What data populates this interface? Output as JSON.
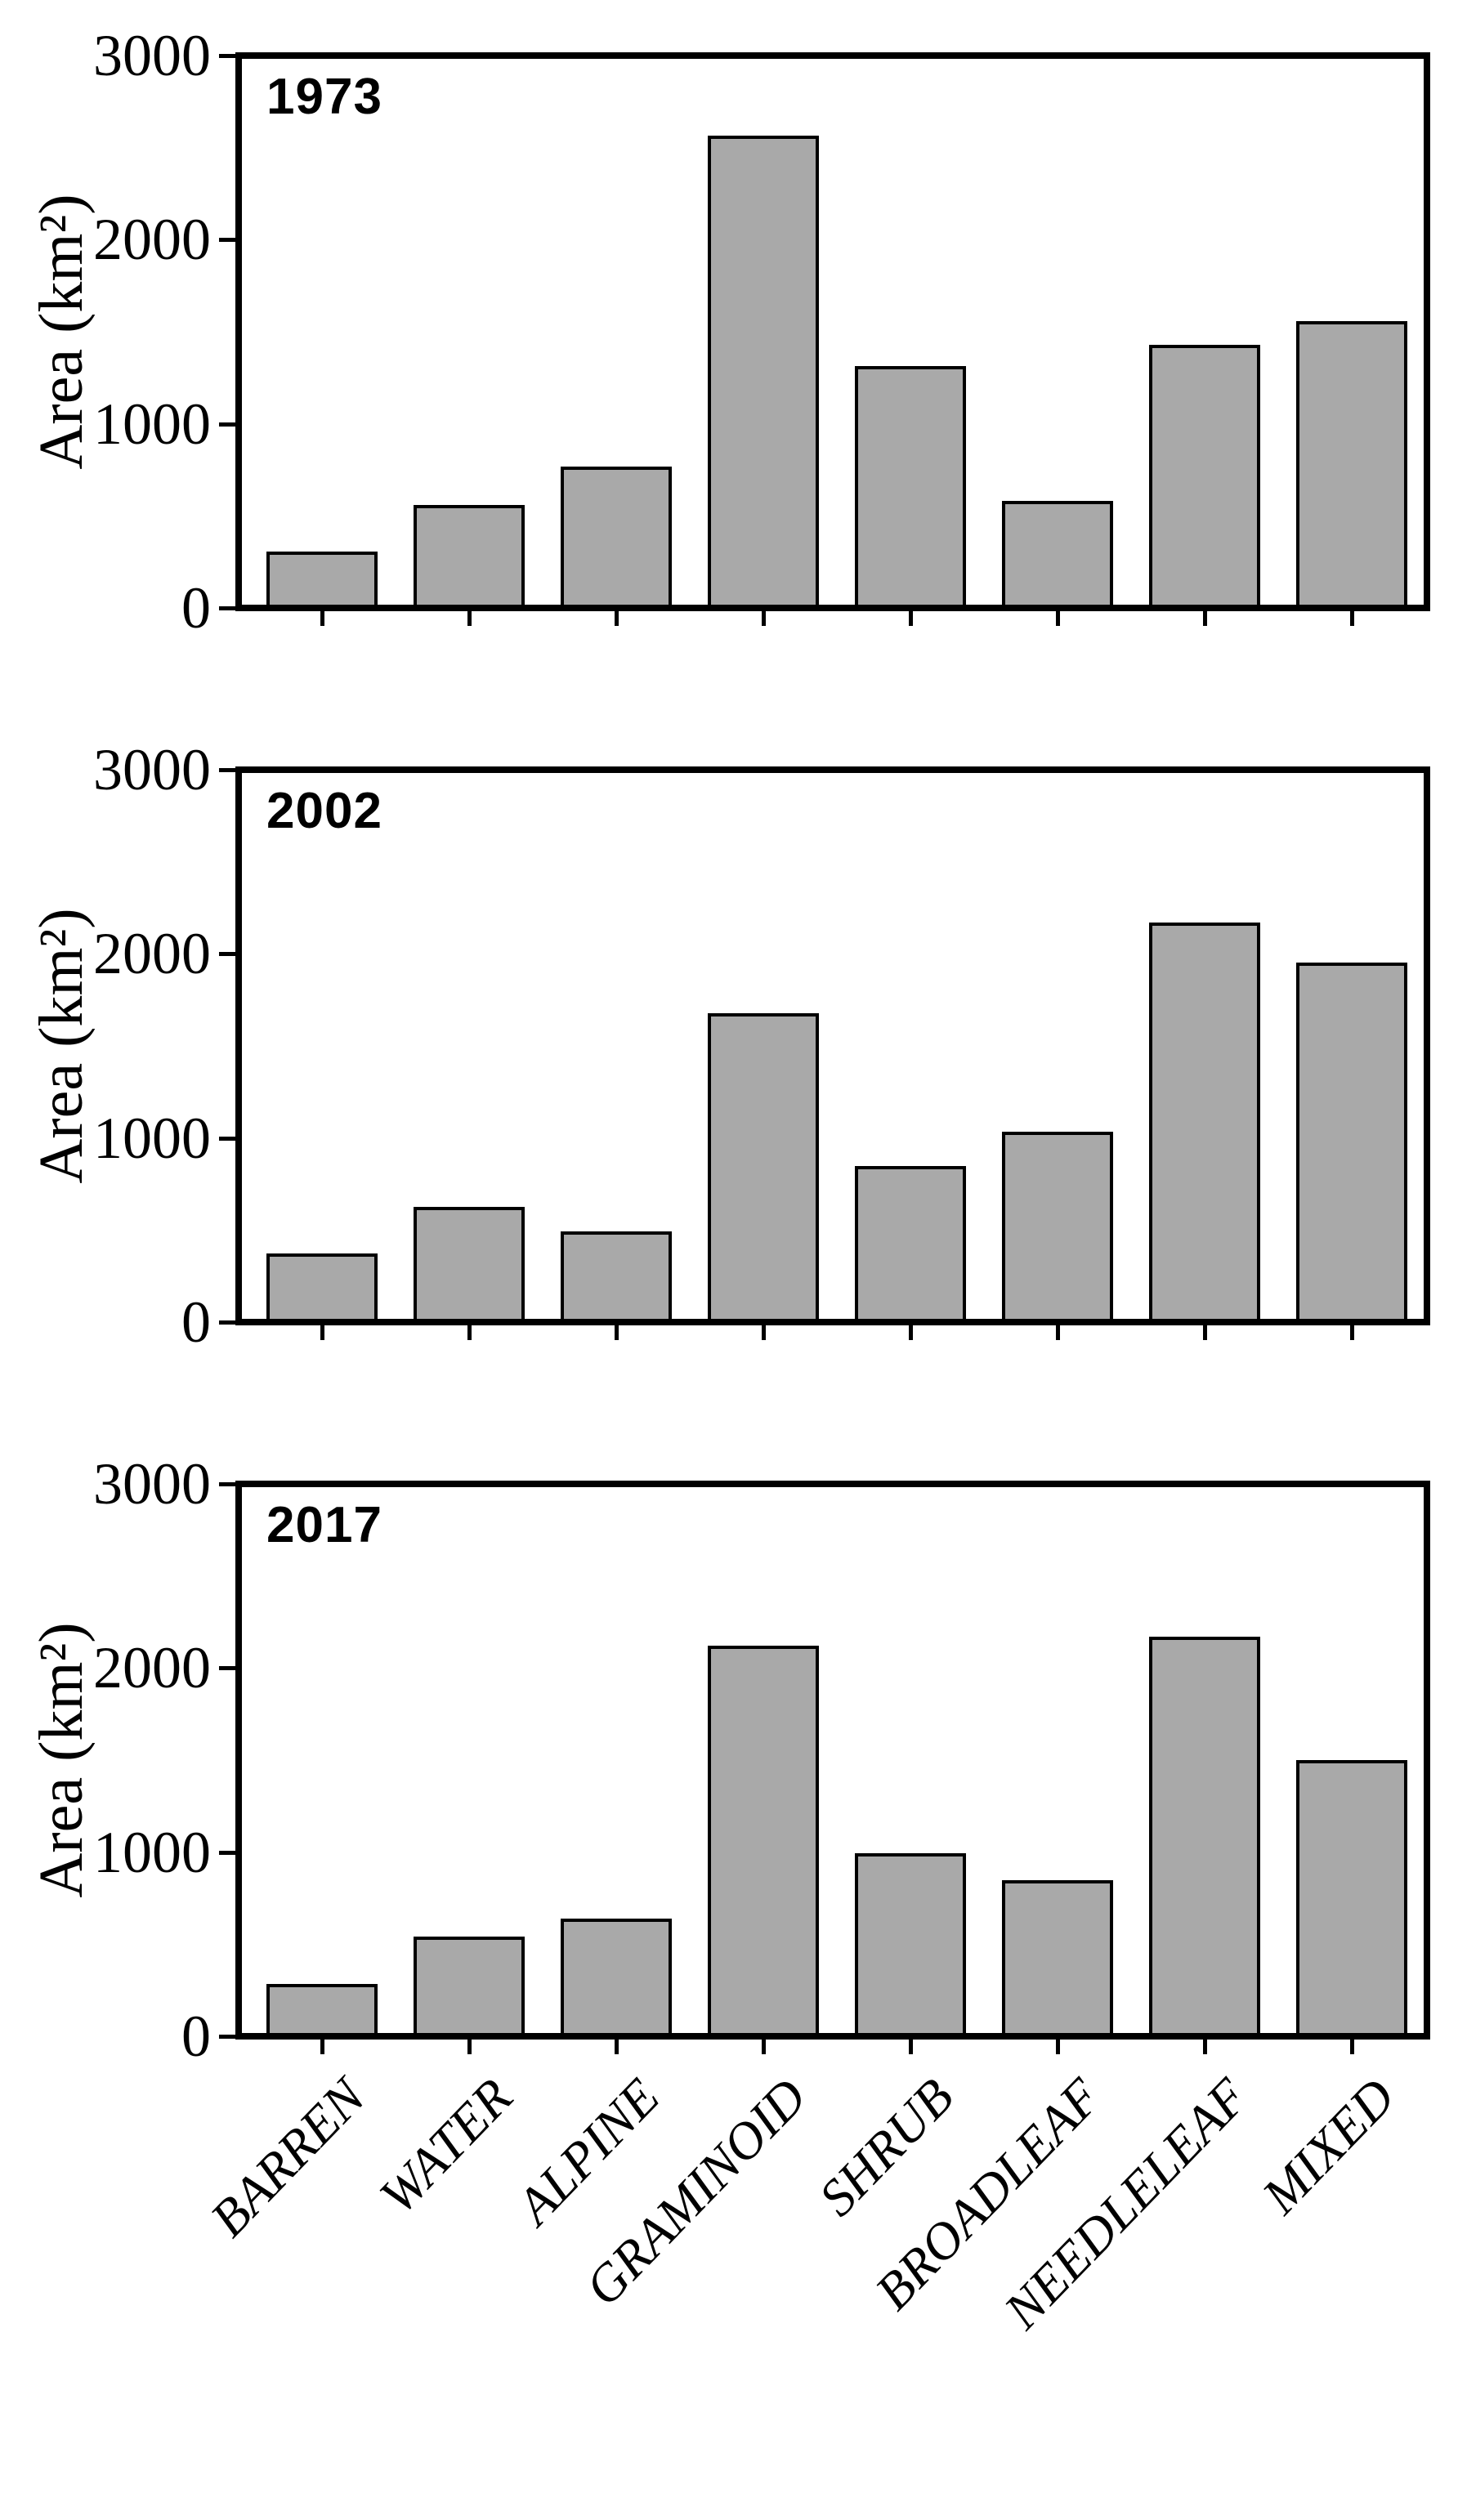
{
  "figure": {
    "colors": {
      "background": "#ffffff",
      "bar_fill": "#a9a9a9",
      "bar_border": "#000000",
      "axis": "#000000",
      "text": "#000000"
    },
    "y_axis_title": "Area (km²)",
    "panel_years": [
      "1973",
      "2002",
      "2017"
    ]
  },
  "chart_data": [
    {
      "type": "bar",
      "title": "1973",
      "categories": [
        "BARREN",
        "WATER",
        "ALPINE",
        "GRAMINOID",
        "SHRUB",
        "BROADLEAF",
        "NEEDLELEAF",
        "MIXED"
      ],
      "values": [
        290,
        550,
        760,
        2580,
        1310,
        570,
        1430,
        1560
      ],
      "xlabel": "",
      "ylabel": "Area (km²)",
      "ylim": [
        0,
        3000
      ],
      "yticks": [
        3000,
        2000,
        1000,
        0
      ],
      "grid": false,
      "legend": "none",
      "bar_color": "#a9a9a9"
    },
    {
      "type": "bar",
      "title": "2002",
      "categories": [
        "BARREN",
        "WATER",
        "ALPINE",
        "GRAMINOID",
        "SHRUB",
        "BROADLEAF",
        "NEEDLELEAF",
        "MIXED"
      ],
      "values": [
        360,
        615,
        480,
        1680,
        840,
        1030,
        2180,
        1960
      ],
      "xlabel": "",
      "ylabel": "Area (km²)",
      "ylim": [
        0,
        3000
      ],
      "yticks": [
        3000,
        2000,
        1000,
        0
      ],
      "grid": false,
      "legend": "none",
      "bar_color": "#a9a9a9"
    },
    {
      "type": "bar",
      "title": "2017",
      "categories": [
        "BARREN",
        "WATER",
        "ALPINE",
        "GRAMINOID",
        "SHRUB",
        "BROADLEAF",
        "NEEDLELEAF",
        "MIXED"
      ],
      "values": [
        270,
        530,
        630,
        2130,
        990,
        840,
        2180,
        1500
      ],
      "xlabel": "",
      "ylabel": "Area (km²)",
      "ylim": [
        0,
        3000
      ],
      "yticks": [
        3000,
        2000,
        1000,
        0
      ],
      "grid": false,
      "legend": "none",
      "bar_color": "#a9a9a9"
    }
  ]
}
